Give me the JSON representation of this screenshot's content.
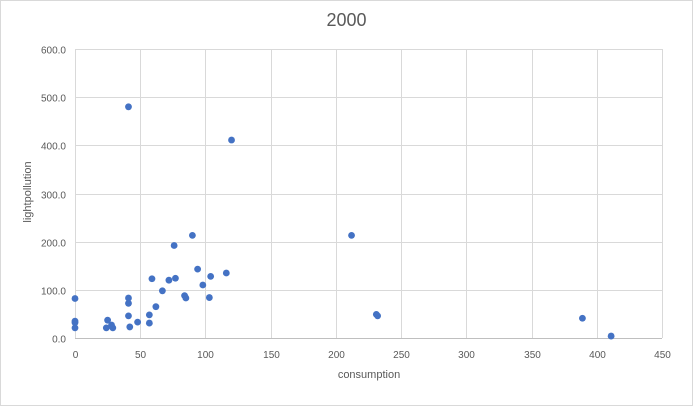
{
  "chart_data": {
    "type": "scatter",
    "title": "2000",
    "xlabel": "consumption",
    "ylabel": "lightpollution",
    "xlim": [
      0,
      450
    ],
    "ylim": [
      0,
      600
    ],
    "x_ticks": [
      0,
      50,
      100,
      150,
      200,
      250,
      300,
      350,
      400,
      450
    ],
    "x_tick_labels": [
      "0",
      "50",
      "100",
      "150",
      "200",
      "250",
      "300",
      "350",
      "400",
      "450"
    ],
    "y_ticks": [
      0,
      100,
      200,
      300,
      400,
      500,
      600
    ],
    "y_tick_labels": [
      "0.0",
      "100.0",
      "200.0",
      "300.0",
      "400.0",
      "500.0",
      "600.0"
    ],
    "grid": true,
    "legend": "none",
    "marker_color": "#4472c4",
    "gridline_color": "#d9d9d9",
    "points": [
      {
        "x": 0,
        "y": 82
      },
      {
        "x": 0,
        "y": 35
      },
      {
        "x": 0,
        "y": 32
      },
      {
        "x": 0,
        "y": 21
      },
      {
        "x": 24,
        "y": 21
      },
      {
        "x": 25,
        "y": 37
      },
      {
        "x": 28,
        "y": 27
      },
      {
        "x": 29,
        "y": 21
      },
      {
        "x": 41,
        "y": 480
      },
      {
        "x": 41,
        "y": 83
      },
      {
        "x": 41,
        "y": 72
      },
      {
        "x": 41,
        "y": 46
      },
      {
        "x": 42,
        "y": 23
      },
      {
        "x": 48,
        "y": 33
      },
      {
        "x": 57,
        "y": 48
      },
      {
        "x": 57,
        "y": 31
      },
      {
        "x": 59,
        "y": 123
      },
      {
        "x": 62,
        "y": 65
      },
      {
        "x": 67,
        "y": 98
      },
      {
        "x": 72,
        "y": 120
      },
      {
        "x": 76,
        "y": 192
      },
      {
        "x": 77,
        "y": 124
      },
      {
        "x": 84,
        "y": 88
      },
      {
        "x": 85,
        "y": 83
      },
      {
        "x": 90,
        "y": 213
      },
      {
        "x": 94,
        "y": 143
      },
      {
        "x": 98,
        "y": 110
      },
      {
        "x": 103,
        "y": 84
      },
      {
        "x": 104,
        "y": 128
      },
      {
        "x": 116,
        "y": 135
      },
      {
        "x": 120,
        "y": 411
      },
      {
        "x": 212,
        "y": 213
      },
      {
        "x": 231,
        "y": 49
      },
      {
        "x": 232,
        "y": 46
      },
      {
        "x": 389,
        "y": 41
      },
      {
        "x": 411,
        "y": 4
      }
    ]
  }
}
